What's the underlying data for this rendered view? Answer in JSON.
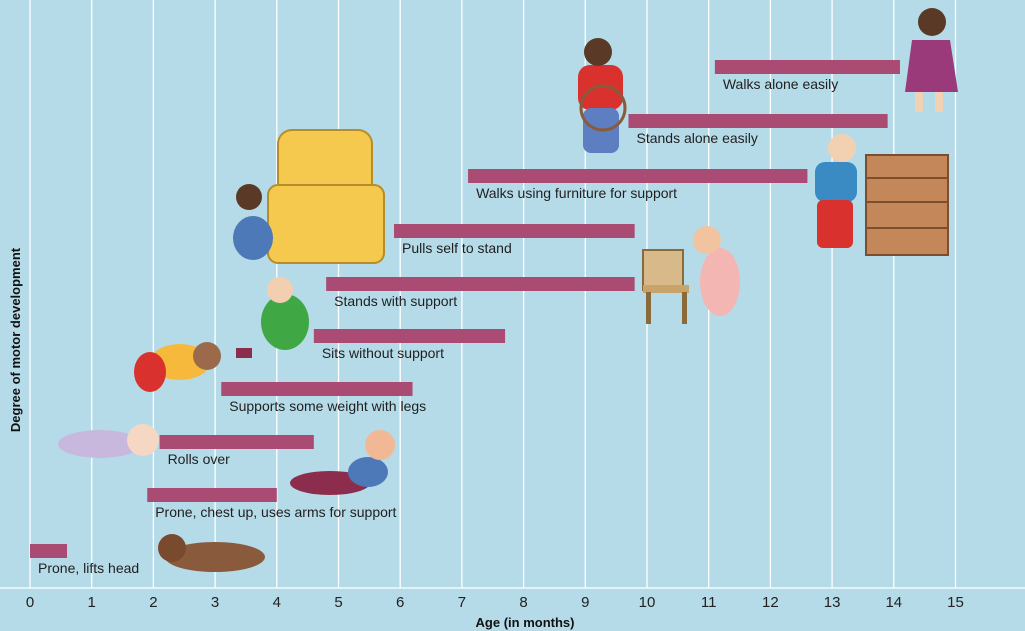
{
  "chart_data": {
    "type": "bar",
    "orientation": "horizontal-range",
    "xlabel": "Age (in months)",
    "ylabel": "Degree of motor development",
    "xlim": [
      0,
      15
    ],
    "x_ticks": [
      "0",
      "1",
      "2",
      "3",
      "4",
      "5",
      "6",
      "7",
      "8",
      "9",
      "10",
      "11",
      "12",
      "13",
      "14",
      "15"
    ],
    "grid": true,
    "bar_color": "#a94b72",
    "background_color": "#b5dbe9",
    "series": [
      {
        "label": "Prone, lifts head",
        "start": 0.0,
        "end": 0.6
      },
      {
        "label": "Prone, chest up, uses arms for support",
        "start": 1.9,
        "end": 4.0
      },
      {
        "label": "Rolls over",
        "start": 2.1,
        "end": 4.6
      },
      {
        "label": "Supports some weight with legs",
        "start": 3.1,
        "end": 6.2
      },
      {
        "label": "Sits without support",
        "start": 4.6,
        "end": 7.7
      },
      {
        "label": "Stands with support",
        "start": 4.8,
        "end": 9.8
      },
      {
        "label": "Pulls self to stand",
        "start": 5.9,
        "end": 9.8
      },
      {
        "label": "Walks using furniture for support",
        "start": 7.1,
        "end": 12.6
      },
      {
        "label": "Stands alone easily",
        "start": 9.7,
        "end": 13.9
      },
      {
        "label": "Walks alone easily",
        "start": 11.1,
        "end": 14.1
      }
    ]
  }
}
